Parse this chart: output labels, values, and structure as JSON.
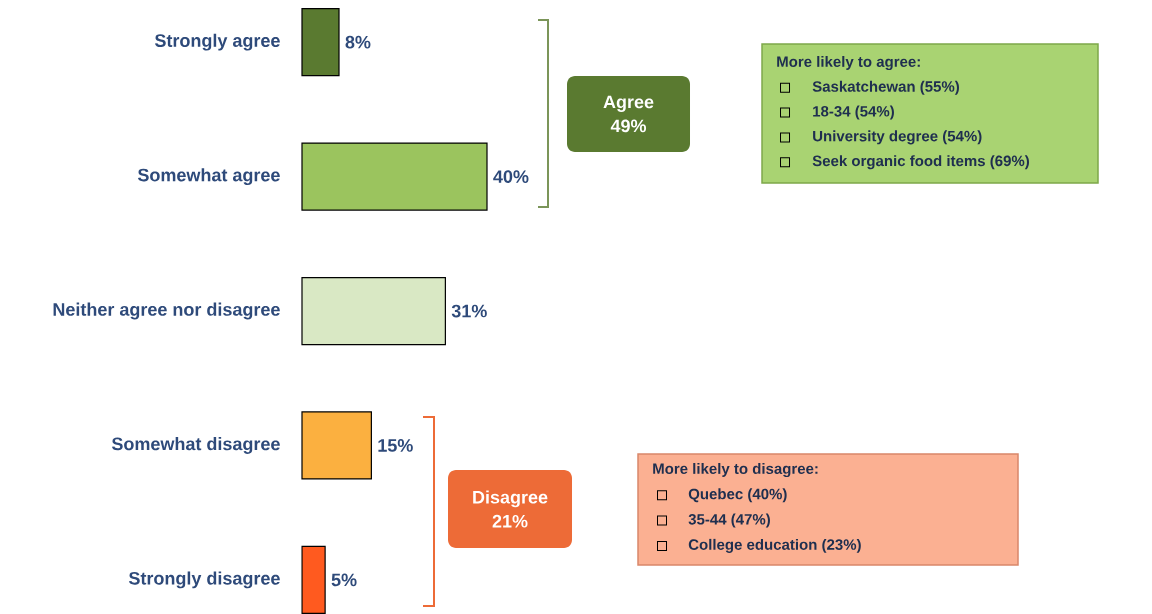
{
  "chart_data": {
    "type": "bar",
    "orientation": "horizontal",
    "categories": [
      "Strongly agree",
      "Somewhat agree",
      "Neither agree nor disagree",
      "Somewhat disagree",
      "Strongly disagree"
    ],
    "values": [
      8,
      40,
      31,
      15,
      5
    ],
    "value_labels": [
      "8%",
      "40%",
      "31%",
      "15%",
      "5%"
    ],
    "colors": [
      "#5a7a30",
      "#9bc45e",
      "#d9e8c4",
      "#fbb040",
      "#ff5a1f"
    ],
    "annotations": [
      "Agree 49%",
      "Disagree 21%",
      "More likely to agree:",
      "Saskatchewan (55%)",
      "18-34 (54%)",
      "University degree (54%)",
      "Seek organic food items (69%)",
      "More likely to disagree:",
      "Quebec (40%)",
      "35-44 (47%)",
      "College education (23%)"
    ]
  }
}
